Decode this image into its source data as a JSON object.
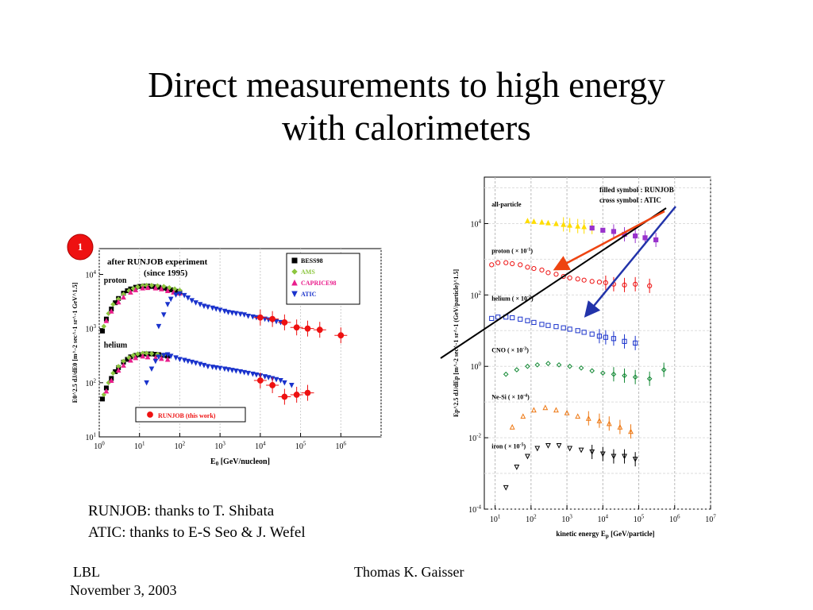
{
  "slide": {
    "title_line1": "Direct measurements to high energy",
    "title_line2": "with calorimeters"
  },
  "credits": {
    "line1": "RUNJOB: thanks to T. Shibata",
    "line2": "ATIC: thanks to E-S Seo & J. Wefel"
  },
  "footer": {
    "left_line1": "LBL",
    "left_line2": "November 3, 2003",
    "center": "Thomas K. Gaisser"
  },
  "colors": {
    "bess": "#000000",
    "ams": "#8cc63f",
    "caprice": "#e91e8c",
    "atic": "#1a33cc",
    "runjob": "#ee1111",
    "allpart_atic": "#ffdd00",
    "allpart_runjob": "#9933cc",
    "cno": "#118833",
    "nesi": "#ee7711",
    "arrow_red": "#ee4411",
    "arrow_blue": "#2233aa"
  },
  "chart_data": [
    {
      "type": "scatter",
      "badge": "1",
      "annotation_line1": "after RUNJOB experiment",
      "annotation_line2": "(since 1995)",
      "xlabel": "E",
      "xlabel_sub": "0",
      "xlabel_rest": "[GeV/nucleon]",
      "ylabel": "E0^2.5 dJ/dE0 [m^-2 sec^-1 sr^-1 GeV^1.5]",
      "x_log": true,
      "y_log": true,
      "xlim": [
        1,
        10000000
      ],
      "ylim": [
        10,
        30000
      ],
      "x_ticks": [
        {
          "v": 1,
          "l": "10",
          "e": "0"
        },
        {
          "v": 10,
          "l": "10",
          "e": "1"
        },
        {
          "v": 100,
          "l": "10",
          "e": "2"
        },
        {
          "v": 1000,
          "l": "10",
          "e": "3"
        },
        {
          "v": 10000,
          "l": "10",
          "e": "4"
        },
        {
          "v": 100000,
          "l": "10",
          "e": "5"
        },
        {
          "v": 1000000,
          "l": "10",
          "e": "6"
        }
      ],
      "y_ticks": [
        {
          "v": 10,
          "l": "10",
          "e": "1"
        },
        {
          "v": 100,
          "l": "10",
          "e": "2"
        },
        {
          "v": 1000,
          "l": "10",
          "e": "3"
        },
        {
          "v": 10000,
          "l": "10",
          "e": "4"
        }
      ],
      "group_labels": [
        {
          "text": "proton",
          "x": 1.3,
          "y": 7000
        },
        {
          "text": "helium",
          "x": 1.3,
          "y": 450
        }
      ],
      "legend": [
        {
          "name": "BESS98",
          "color": "#000000",
          "shape": "square"
        },
        {
          "name": "AMS",
          "color": "#8cc63f",
          "shape": "diamond"
        },
        {
          "name": "CAPRICE98",
          "color": "#e91e8c",
          "shape": "triangle-up"
        },
        {
          "name": "ATIC",
          "color": "#1a33cc",
          "shape": "triangle-down"
        }
      ],
      "legend2": {
        "name": "RUNJOB (this work)",
        "color": "#ee1111",
        "shape": "circle"
      },
      "series": [
        {
          "name": "BESS98",
          "group": "proton",
          "color": "#000000",
          "shape": "square",
          "x": [
            1.2,
            1.5,
            2,
            2.5,
            3,
            4,
            5,
            6,
            8,
            10,
            13,
            16,
            20,
            25,
            30,
            40,
            50,
            60,
            80,
            100
          ],
          "y": [
            900,
            1500,
            2300,
            3000,
            3600,
            4500,
            5000,
            5400,
            5800,
            6000,
            6100,
            6100,
            6000,
            5900,
            5800,
            5600,
            5400,
            5200,
            4900,
            4700
          ]
        },
        {
          "name": "AMS",
          "group": "proton",
          "color": "#8cc63f",
          "shape": "diamond",
          "x": [
            1.3,
            1.7,
            2.2,
            3,
            4,
            5.5,
            7,
            9,
            12,
            15,
            20,
            28,
            40,
            55,
            75,
            100
          ],
          "y": [
            1100,
            1900,
            2800,
            3500,
            4300,
            5000,
            5500,
            5900,
            6200,
            6300,
            6300,
            6200,
            6000,
            5700,
            5400,
            5100
          ]
        },
        {
          "name": "CAPRICE98",
          "group": "proton",
          "color": "#e91e8c",
          "shape": "triangle-up",
          "x": [
            1.5,
            2,
            3,
            4,
            6,
            8,
            12,
            16,
            25,
            35,
            50,
            70,
            100
          ],
          "y": [
            1400,
            2100,
            3100,
            3800,
            4700,
            5200,
            5600,
            5700,
            5600,
            5400,
            5000,
            4700,
            4500
          ]
        },
        {
          "name": "ATIC",
          "group": "proton",
          "color": "#1a33cc",
          "shape": "triangle-down",
          "x": [
            30,
            40,
            50,
            60,
            80,
            100,
            130,
            160,
            200,
            250,
            320,
            400,
            500,
            650,
            800,
            1000,
            1300,
            1600,
            2000,
            2500,
            3200,
            4000,
            5000,
            6500,
            8000,
            10000,
            13000,
            16000,
            20000,
            25000,
            32000,
            40000
          ],
          "y": [
            1100,
            1800,
            2800,
            3500,
            4200,
            4400,
            4100,
            3700,
            3300,
            3000,
            2800,
            2600,
            2500,
            2400,
            2300,
            2200,
            2100,
            2000,
            1950,
            1900,
            1850,
            1800,
            1700,
            1650,
            1600,
            1550,
            1500,
            1450,
            1400,
            1350,
            1300,
            1250
          ]
        },
        {
          "name": "RUNJOB (this work)",
          "group": "proton",
          "color": "#ee1111",
          "shape": "circle",
          "x": [
            10000,
            20000,
            40000,
            80000,
            150000,
            300000,
            1000000
          ],
          "y": [
            1600,
            1500,
            1300,
            1050,
            1000,
            950,
            750
          ]
        },
        {
          "name": "BESS98",
          "group": "helium",
          "color": "#000000",
          "shape": "square",
          "x": [
            1.2,
            1.5,
            2,
            2.5,
            3,
            4,
            5,
            6,
            8,
            10,
            13,
            16,
            20,
            25,
            30,
            40,
            50
          ],
          "y": [
            50,
            80,
            120,
            160,
            190,
            240,
            270,
            300,
            320,
            330,
            340,
            340,
            340,
            335,
            330,
            320,
            310
          ]
        },
        {
          "name": "AMS",
          "group": "helium",
          "color": "#8cc63f",
          "shape": "diamond",
          "x": [
            1.3,
            1.7,
            2.2,
            3,
            4,
            5.5,
            7,
            9,
            12,
            15,
            20,
            28,
            40
          ],
          "y": [
            60,
            100,
            150,
            200,
            250,
            290,
            320,
            340,
            350,
            350,
            345,
            335,
            325
          ]
        },
        {
          "name": "CAPRICE98",
          "group": "helium",
          "color": "#e91e8c",
          "shape": "triangle-up",
          "x": [
            1.5,
            2,
            3,
            4,
            6,
            8,
            12,
            16,
            25,
            35,
            50
          ],
          "y": [
            70,
            110,
            170,
            210,
            260,
            290,
            310,
            300,
            290,
            280,
            270
          ]
        },
        {
          "name": "ATIC",
          "group": "helium",
          "color": "#1a33cc",
          "shape": "triangle-down",
          "x": [
            15,
            20,
            25,
            30,
            40,
            50,
            60,
            80,
            100,
            130,
            160,
            200,
            250,
            320,
            400,
            500,
            650,
            800,
            1000,
            1300,
            1600,
            2000,
            2500,
            3200,
            4000,
            5000,
            6500,
            8000,
            10000,
            13000,
            16000,
            20000,
            25000,
            32000,
            40000,
            60000
          ],
          "y": [
            100,
            180,
            250,
            300,
            320,
            330,
            310,
            290,
            270,
            260,
            250,
            240,
            230,
            220,
            210,
            200,
            195,
            190,
            185,
            180,
            175,
            170,
            165,
            160,
            155,
            150,
            145,
            140,
            135,
            130,
            125,
            120,
            115,
            110,
            100,
            90
          ]
        },
        {
          "name": "RUNJOB (this work)",
          "group": "helium",
          "color": "#ee1111",
          "shape": "circle",
          "x": [
            10000,
            20000,
            40000,
            80000,
            150000
          ],
          "y": [
            110,
            90,
            55,
            60,
            65
          ]
        }
      ]
    },
    {
      "type": "scatter",
      "legend_line1": "filled symbol : RUNJOB",
      "legend_line2": "cross symbol : ATIC",
      "xlabel": "kinetic  energy E",
      "xlabel_sub": "p",
      "xlabel_rest": "[GeV/particle]",
      "ylabel": "Ep^2.5 dJ/dEp [m^-2 sec^-1 sr^-1 (GeV/particle)^1.5]",
      "x_log": true,
      "y_log": true,
      "xlim": [
        5,
        10000000
      ],
      "ylim": [
        0.0001,
        200000
      ],
      "x_ticks": [
        {
          "v": 10,
          "l": "10",
          "e": "1"
        },
        {
          "v": 100,
          "l": "10",
          "e": "2"
        },
        {
          "v": 1000,
          "l": "10",
          "e": "3"
        },
        {
          "v": 10000,
          "l": "10",
          "e": "4"
        },
        {
          "v": 100000,
          "l": "10",
          "e": "5"
        },
        {
          "v": 1000000,
          "l": "10",
          "e": "6"
        },
        {
          "v": 10000000,
          "l": "10",
          "e": "7"
        }
      ],
      "y_ticks": [
        {
          "v": 0.0001,
          "l": "10",
          "e": "-4"
        },
        {
          "v": 0.01,
          "l": "10",
          "e": "-2"
        },
        {
          "v": 1,
          "l": "10",
          "e": "0"
        },
        {
          "v": 100,
          "l": "10",
          "e": "2"
        },
        {
          "v": 10000,
          "l": "10",
          "e": "4"
        }
      ],
      "group_labels": [
        {
          "text": "all-particle",
          "x": 8,
          "y": 30000
        },
        {
          "text": "proton (  × 10",
          "sup": "-1",
          "close": ")",
          "x": 8,
          "y": 1500
        },
        {
          "text": "helium (  × 10",
          "sup": "-2",
          "close": ")",
          "x": 8,
          "y": 70
        },
        {
          "text": "CNO (  × 10",
          "sup": "-3",
          "close": ")",
          "x": 8,
          "y": 2.5
        },
        {
          "text": "Ne-Si (  × 10",
          "sup": "-4",
          "close": ")",
          "x": 8,
          "y": 0.12
        },
        {
          "text": "iron (  × 10",
          "sup": "-5",
          "close": ")",
          "x": 8,
          "y": 0.005
        }
      ],
      "series": [
        {
          "name": "all-particle ATIC",
          "color": "#ffdd00",
          "shape": "triangle-up",
          "x": [
            80,
            120,
            200,
            300,
            500,
            800,
            1200,
            2000,
            3000,
            5000
          ],
          "y": [
            12000,
            11500,
            11000,
            10500,
            10000,
            9500,
            9000,
            8500,
            8200,
            8000
          ]
        },
        {
          "name": "all-particle RUNJOB",
          "color": "#9933cc",
          "shape": "square",
          "x": [
            5000,
            10000,
            20000,
            40000,
            80000,
            150000,
            300000
          ],
          "y": [
            7500,
            6500,
            6000,
            5000,
            4500,
            4000,
            3500
          ]
        },
        {
          "name": "proton",
          "color": "#ee1111",
          "shape": "circle",
          "x": [
            8,
            12,
            20,
            30,
            50,
            80,
            120,
            200,
            300,
            500,
            800,
            1200,
            2000,
            3000,
            5000,
            8000,
            12000,
            20000,
            40000,
            80000,
            200000
          ],
          "y": [
            700,
            800,
            800,
            750,
            700,
            600,
            550,
            500,
            420,
            380,
            330,
            300,
            280,
            260,
            240,
            230,
            220,
            200,
            190,
            200,
            180
          ]
        },
        {
          "name": "helium",
          "color": "#1a33cc",
          "shape": "square",
          "x": [
            8,
            12,
            20,
            30,
            50,
            80,
            120,
            200,
            300,
            500,
            800,
            1200,
            2000,
            3000,
            5000,
            8000,
            12000,
            20000,
            40000,
            80000
          ],
          "y": [
            22,
            24,
            24,
            23,
            21,
            19,
            17,
            15,
            14,
            13,
            12,
            11,
            10,
            9,
            8,
            7,
            6.5,
            6,
            5,
            4.5
          ]
        },
        {
          "name": "CNO",
          "color": "#118833",
          "shape": "diamond",
          "x": [
            20,
            40,
            80,
            150,
            300,
            600,
            1200,
            2500,
            5000,
            10000,
            20000,
            40000,
            80000,
            200000,
            500000
          ],
          "y": [
            0.6,
            0.8,
            1.0,
            1.1,
            1.2,
            1.1,
            1.0,
            0.9,
            0.75,
            0.65,
            0.6,
            0.55,
            0.5,
            0.45,
            0.8
          ]
        },
        {
          "name": "Ne-Si",
          "color": "#ee7711",
          "shape": "triangle-up",
          "x": [
            30,
            60,
            120,
            250,
            500,
            1000,
            2000,
            4000,
            8000,
            15000,
            30000,
            60000
          ],
          "y": [
            0.02,
            0.04,
            0.06,
            0.07,
            0.06,
            0.05,
            0.04,
            0.035,
            0.03,
            0.025,
            0.02,
            0.015
          ]
        },
        {
          "name": "iron",
          "color": "#000000",
          "shape": "triangle-down",
          "x": [
            20,
            40,
            80,
            150,
            300,
            600,
            1200,
            2500,
            5000,
            10000,
            20000,
            40000,
            80000
          ],
          "y": [
            0.0004,
            0.0015,
            0.003,
            0.005,
            0.006,
            0.006,
            0.005,
            0.0045,
            0.004,
            0.0035,
            0.003,
            0.003,
            0.0025
          ]
        }
      ]
    }
  ]
}
